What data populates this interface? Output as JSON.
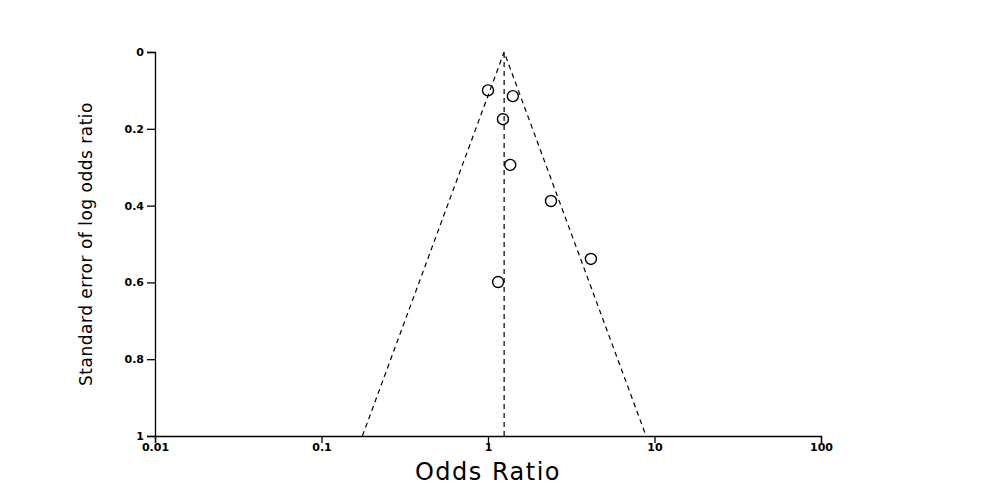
{
  "chart_data": {
    "type": "scatter",
    "xlabel": "Odds Ratio",
    "ylabel": "Standard error of log odds ratio",
    "x": [
      1.0,
      1.41,
      1.23,
      1.36,
      2.39,
      4.15,
      1.15
    ],
    "values": [
      0.1,
      0.115,
      0.175,
      0.294,
      0.388,
      0.539,
      0.599
    ],
    "pooled_or": 1.25,
    "funnel": {
      "x": [
        0.176,
        1.25,
        8.9
      ],
      "y": [
        1,
        0,
        1
      ]
    },
    "xlim": [
      0.01,
      100
    ],
    "xticks": [
      0.01,
      0.1,
      1,
      10,
      100
    ],
    "ylim": [
      1,
      0
    ],
    "yticks": [
      0,
      0.2,
      0.4,
      0.6,
      0.8,
      1
    ],
    "log": "x",
    "grid": false,
    "marker": "circle",
    "line_style": "dashed"
  }
}
